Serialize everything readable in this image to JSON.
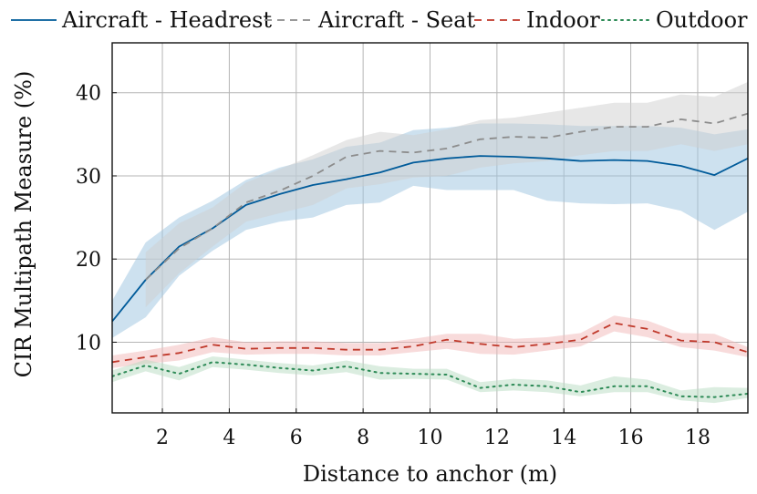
{
  "chart_data": {
    "type": "line",
    "xlabel": "Distance to anchor (m)",
    "ylabel": "CIR Multipath Measure (%)",
    "xlim": [
      0.5,
      19.5
    ],
    "ylim": [
      1.5,
      46
    ],
    "xticks": [
      2,
      4,
      6,
      8,
      10,
      12,
      14,
      16,
      18
    ],
    "yticks": [
      10,
      20,
      30,
      40
    ],
    "grid": true,
    "legend_position": "top",
    "series": [
      {
        "name": "Aircraft - Headrest",
        "color": "#005b9a",
        "dash": "solid",
        "band_color": "#9cc4df",
        "x": [
          0.5,
          1.5,
          2.5,
          3.5,
          4.5,
          5.5,
          6.5,
          7.5,
          8.5,
          9.5,
          10.5,
          11.5,
          12.5,
          13.5,
          14.5,
          15.5,
          16.5,
          17.5,
          18.5,
          19.5
        ],
        "values": [
          12.5,
          17.5,
          21.5,
          23.7,
          26.5,
          27.8,
          28.9,
          29.6,
          30.4,
          31.6,
          32.1,
          32.4,
          32.3,
          32.1,
          31.8,
          31.9,
          31.8,
          31.2,
          30.1,
          32.1
        ],
        "lower": [
          10.5,
          13.0,
          18.0,
          21.0,
          23.5,
          24.5,
          25.0,
          26.5,
          26.8,
          28.8,
          28.3,
          28.3,
          28.3,
          27.0,
          26.7,
          26.6,
          26.7,
          25.8,
          23.5,
          25.7
        ],
        "upper": [
          15.0,
          22.0,
          25.0,
          27.0,
          29.5,
          31.0,
          32.0,
          33.5,
          34.0,
          35.5,
          35.8,
          36.3,
          36.3,
          36.2,
          36.0,
          36.0,
          36.0,
          35.8,
          35.0,
          35.6
        ]
      },
      {
        "name": "Aircraft - Seat",
        "color": "#8c8c8c",
        "dash": "dashed",
        "band_color": "#cfcfcf",
        "x": [
          1.5,
          2.5,
          3.5,
          4.5,
          5.5,
          6.5,
          7.5,
          8.5,
          9.5,
          10.5,
          11.5,
          12.5,
          13.5,
          14.5,
          15.5,
          16.5,
          17.5,
          18.5,
          19.5
        ],
        "values": [
          17.5,
          21.3,
          23.7,
          26.8,
          28.2,
          30.0,
          32.3,
          33.0,
          32.8,
          33.3,
          34.4,
          34.7,
          34.6,
          35.3,
          35.9,
          35.9,
          36.8,
          36.3,
          37.5
        ],
        "lower": [
          14.2,
          18.3,
          21.5,
          24.5,
          25.5,
          26.5,
          28.5,
          29.0,
          29.8,
          30.0,
          31.0,
          31.5,
          31.8,
          32.5,
          33.0,
          33.0,
          33.8,
          33.0,
          33.8
        ],
        "upper": [
          20.8,
          24.3,
          26.2,
          29.2,
          30.8,
          32.5,
          34.3,
          35.3,
          34.9,
          35.6,
          36.7,
          37.0,
          37.6,
          38.2,
          38.8,
          38.8,
          39.8,
          39.5,
          41.3
        ]
      },
      {
        "name": "Indoor",
        "color": "#c0392b",
        "dash": "dashed",
        "band_color": "#f2b8b8",
        "x": [
          0.5,
          1.5,
          2.5,
          3.5,
          4.5,
          5.5,
          6.5,
          7.5,
          8.5,
          9.5,
          10.5,
          11.5,
          12.5,
          13.5,
          14.5,
          15.5,
          16.5,
          17.5,
          18.5,
          19.5
        ],
        "values": [
          7.6,
          8.2,
          8.7,
          9.7,
          9.2,
          9.3,
          9.3,
          9.1,
          9.1,
          9.5,
          10.3,
          9.8,
          9.4,
          9.8,
          10.3,
          12.3,
          11.6,
          10.2,
          10.0,
          8.8
        ],
        "lower": [
          6.9,
          7.4,
          7.8,
          8.8,
          8.5,
          8.6,
          8.6,
          8.4,
          8.4,
          8.8,
          9.2,
          8.6,
          8.5,
          9.0,
          9.5,
          11.3,
          10.6,
          9.4,
          9.0,
          8.2
        ],
        "upper": [
          8.4,
          9.0,
          9.7,
          10.6,
          10.0,
          10.1,
          10.1,
          9.9,
          9.9,
          10.4,
          11.0,
          11.0,
          10.4,
          10.6,
          11.1,
          13.2,
          12.6,
          11.1,
          11.0,
          9.4
        ]
      },
      {
        "name": "Outdoor",
        "color": "#2e8b57",
        "dash": "dotted",
        "band_color": "#b7dcc1",
        "x": [
          0.5,
          1.5,
          2.5,
          3.5,
          4.5,
          5.5,
          6.5,
          7.5,
          8.5,
          9.5,
          10.5,
          11.5,
          12.5,
          13.5,
          14.5,
          15.5,
          16.5,
          17.5,
          18.5,
          19.5
        ],
        "values": [
          5.9,
          7.2,
          6.2,
          7.6,
          7.3,
          6.9,
          6.6,
          7.1,
          6.3,
          6.2,
          6.1,
          4.5,
          4.9,
          4.7,
          4.0,
          4.7,
          4.7,
          3.5,
          3.4,
          3.8
        ],
        "lower": [
          5.2,
          6.5,
          5.4,
          7.0,
          6.7,
          6.3,
          6.0,
          6.4,
          5.5,
          5.6,
          5.5,
          4.0,
          4.2,
          4.0,
          3.5,
          4.0,
          4.0,
          3.0,
          2.7,
          3.3
        ],
        "upper": [
          6.6,
          7.9,
          7.0,
          8.3,
          7.9,
          7.5,
          7.2,
          7.8,
          7.1,
          6.8,
          6.8,
          5.2,
          5.6,
          5.4,
          4.8,
          5.9,
          5.5,
          4.2,
          4.6,
          4.5
        ]
      }
    ]
  }
}
